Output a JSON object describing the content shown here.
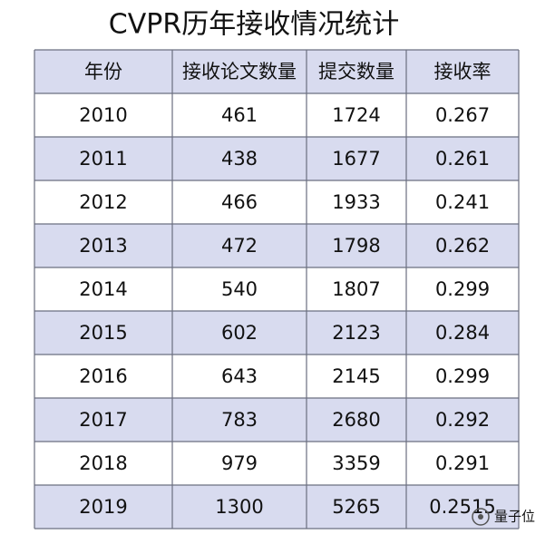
{
  "title": "CVPR历年接收情况统计",
  "table": {
    "header": [
      "年份",
      "接收论文数量",
      "提交数量",
      "接收率"
    ],
    "rows": [
      [
        2010,
        461,
        1724,
        0.267
      ],
      [
        2011,
        438,
        1677,
        0.261
      ],
      [
        2012,
        466,
        1933,
        0.241
      ],
      [
        2013,
        472,
        1798,
        0.262
      ],
      [
        2014,
        540,
        1807,
        0.299
      ],
      [
        2015,
        602,
        2123,
        0.284
      ],
      [
        2016,
        643,
        2145,
        0.299
      ],
      [
        2017,
        783,
        2680,
        0.292
      ],
      [
        2018,
        979,
        3359,
        0.291
      ],
      [
        2019,
        1300,
        5265,
        0.2515
      ]
    ]
  },
  "watermark": "量子位"
}
